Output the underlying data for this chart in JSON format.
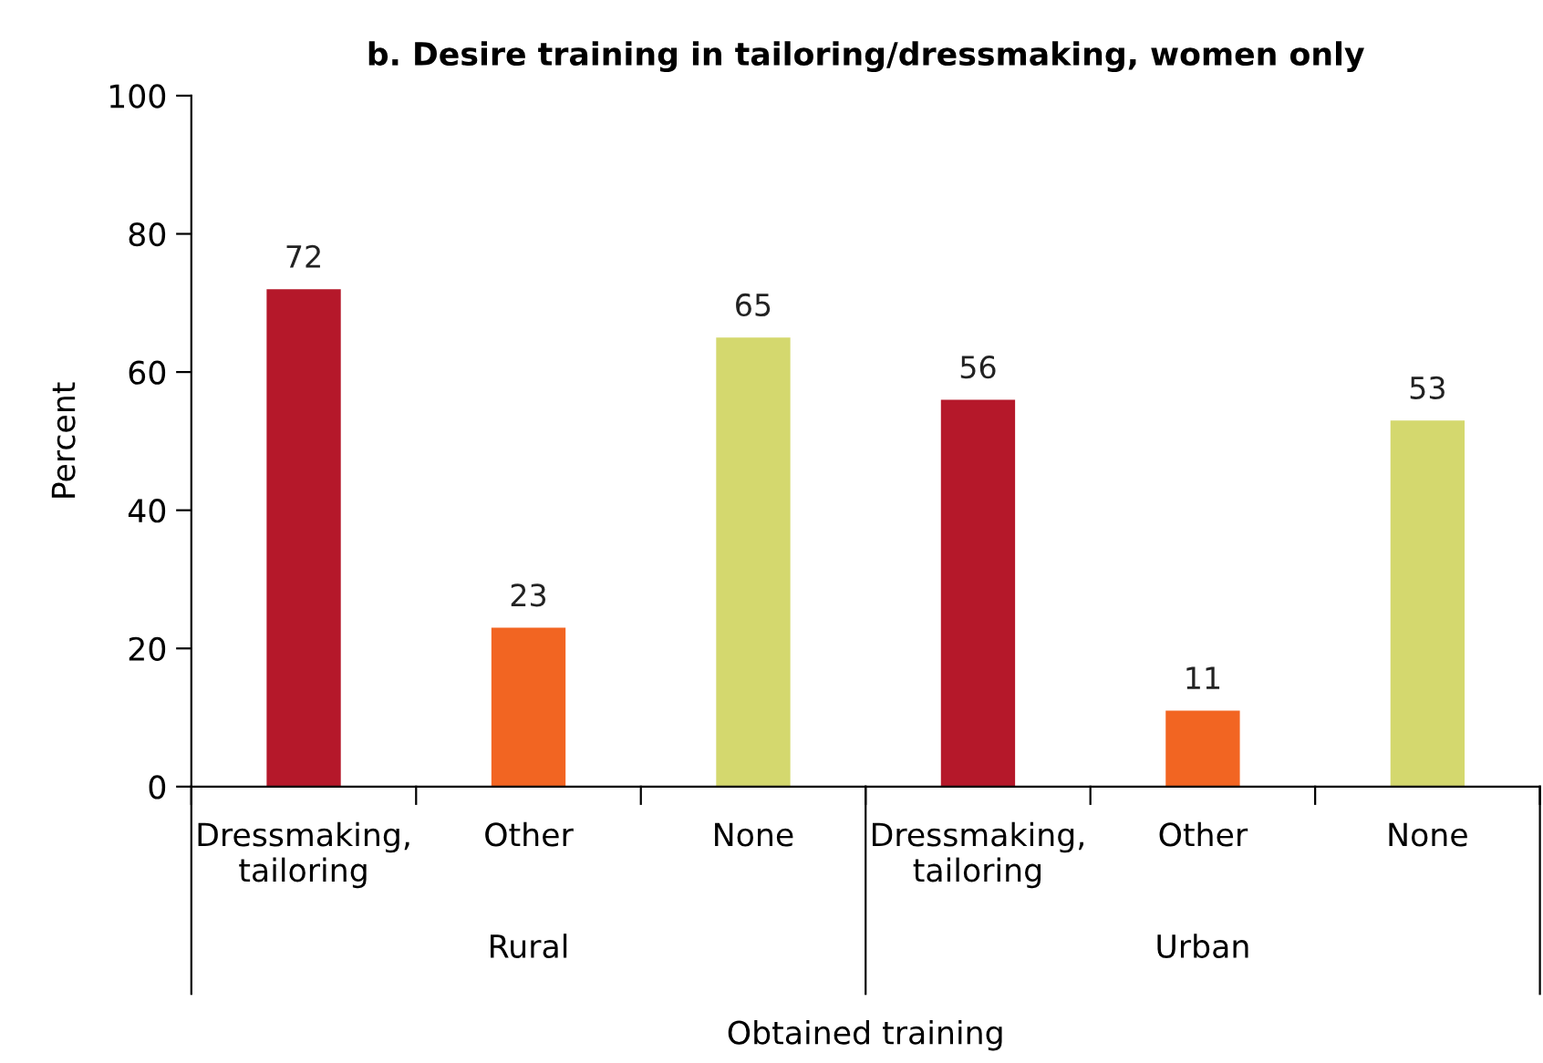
{
  "chart_data": {
    "type": "bar",
    "title": "b. Desire training in tailoring/dressmaking, women only",
    "ylabel": "Percent",
    "xlabel": "Obtained training",
    "categories": [
      "Dressmaking,\ntailoring",
      "Other",
      "None",
      "Dressmaking,\ntailoring",
      "Other",
      "None"
    ],
    "values": [
      72,
      23,
      65,
      56,
      11,
      53
    ],
    "colors": [
      "#b5182a",
      "#f26522",
      "#d4d86e",
      "#b5182a",
      "#f26522",
      "#d4d86e"
    ],
    "ylim": [
      0,
      100
    ],
    "yticks": [
      0,
      20,
      40,
      60,
      80,
      100
    ],
    "grid": false,
    "data_labels": true,
    "annotations": [
      "Rural",
      "Urban"
    ]
  }
}
